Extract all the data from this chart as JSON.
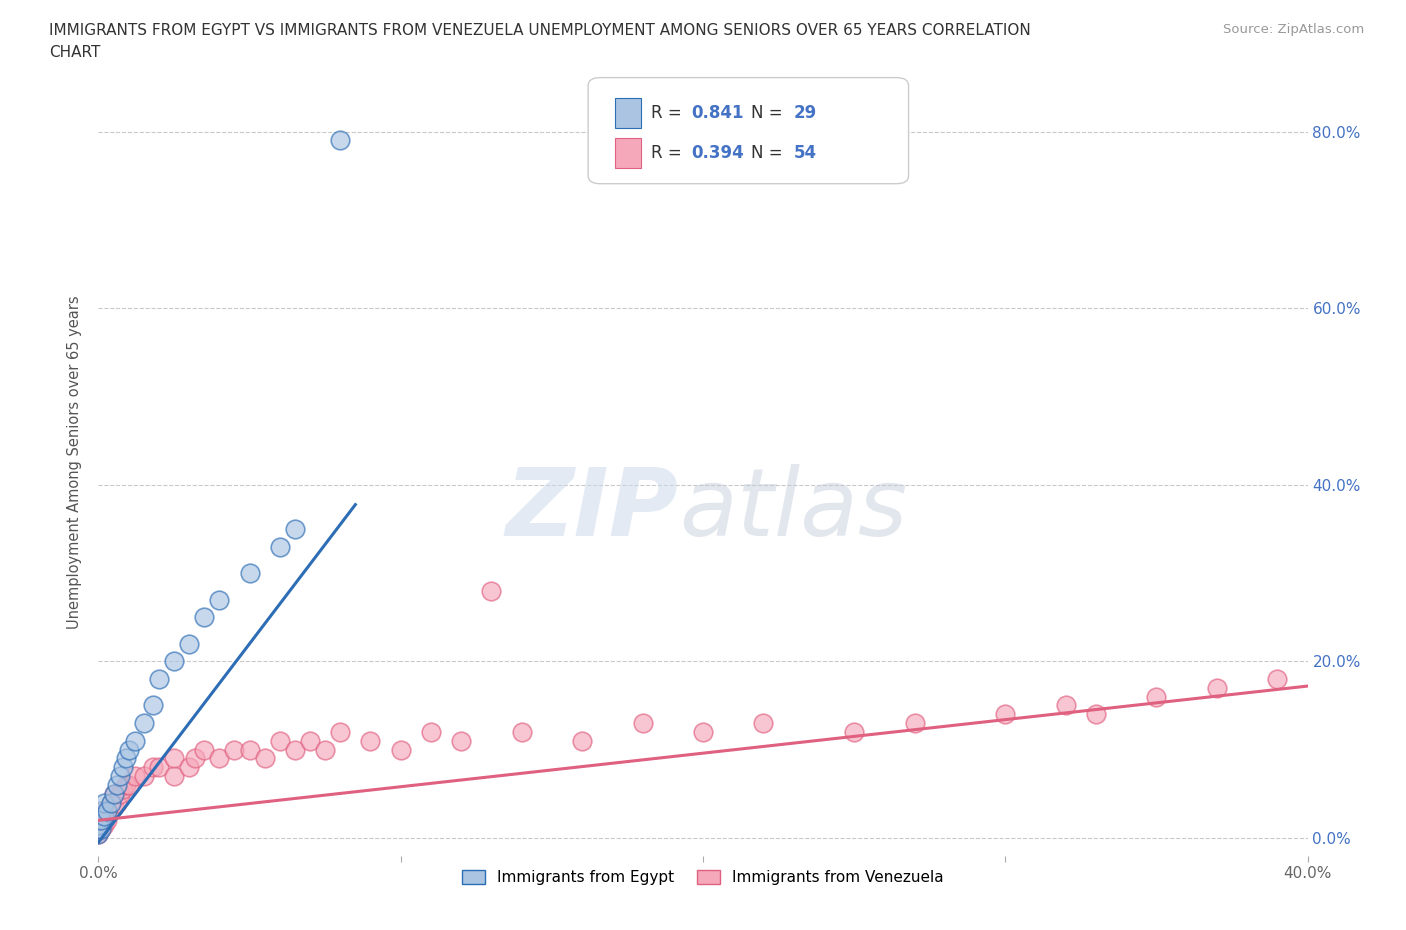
{
  "title_line1": "IMMIGRANTS FROM EGYPT VS IMMIGRANTS FROM VENEZUELA UNEMPLOYMENT AMONG SENIORS OVER 65 YEARS CORRELATION",
  "title_line2": "CHART",
  "source": "Source: ZipAtlas.com",
  "ylabel": "Unemployment Among Seniors over 65 years",
  "ytick_vals": [
    0.0,
    0.2,
    0.4,
    0.6,
    0.8
  ],
  "xlim": [
    0.0,
    0.4
  ],
  "ylim": [
    -0.02,
    0.87
  ],
  "r_egypt": 0.841,
  "n_egypt": 29,
  "r_venezuela": 0.394,
  "n_venezuela": 54,
  "legend_label_egypt": "Immigrants from Egypt",
  "legend_label_venezuela": "Immigrants from Venezuela",
  "egypt_color": "#aac4e2",
  "venezuela_color": "#f5a8ba",
  "egypt_line_color": "#2d6db5",
  "venezuela_line_color": "#e06080",
  "watermark_zip": "ZIP",
  "watermark_atlas": "atlas",
  "egypt_x": [
    0.0,
    0.0,
    0.0,
    0.0,
    0.001,
    0.001,
    0.001,
    0.002,
    0.002,
    0.003,
    0.004,
    0.005,
    0.006,
    0.007,
    0.008,
    0.009,
    0.01,
    0.012,
    0.015,
    0.018,
    0.02,
    0.025,
    0.03,
    0.035,
    0.04,
    0.05,
    0.06,
    0.065,
    0.08
  ],
  "egypt_y": [
    0.005,
    0.01,
    0.015,
    0.02,
    0.01,
    0.02,
    0.03,
    0.025,
    0.04,
    0.03,
    0.04,
    0.05,
    0.06,
    0.07,
    0.08,
    0.09,
    0.1,
    0.11,
    0.13,
    0.15,
    0.18,
    0.2,
    0.22,
    0.25,
    0.27,
    0.3,
    0.33,
    0.35,
    0.79
  ],
  "venezuela_x": [
    0.0,
    0.0,
    0.0,
    0.0,
    0.001,
    0.001,
    0.002,
    0.002,
    0.003,
    0.003,
    0.004,
    0.005,
    0.005,
    0.006,
    0.007,
    0.008,
    0.009,
    0.01,
    0.012,
    0.015,
    0.018,
    0.02,
    0.025,
    0.025,
    0.03,
    0.032,
    0.035,
    0.04,
    0.045,
    0.05,
    0.055,
    0.06,
    0.065,
    0.07,
    0.075,
    0.08,
    0.09,
    0.1,
    0.11,
    0.12,
    0.13,
    0.14,
    0.16,
    0.18,
    0.2,
    0.22,
    0.25,
    0.27,
    0.3,
    0.32,
    0.33,
    0.35,
    0.37,
    0.39
  ],
  "venezuela_y": [
    0.005,
    0.008,
    0.01,
    0.02,
    0.01,
    0.02,
    0.015,
    0.03,
    0.02,
    0.03,
    0.04,
    0.035,
    0.05,
    0.04,
    0.05,
    0.055,
    0.06,
    0.06,
    0.07,
    0.07,
    0.08,
    0.08,
    0.07,
    0.09,
    0.08,
    0.09,
    0.1,
    0.09,
    0.1,
    0.1,
    0.09,
    0.11,
    0.1,
    0.11,
    0.1,
    0.12,
    0.11,
    0.1,
    0.12,
    0.11,
    0.28,
    0.12,
    0.11,
    0.13,
    0.12,
    0.13,
    0.12,
    0.13,
    0.14,
    0.15,
    0.14,
    0.16,
    0.17,
    0.18
  ],
  "egypt_line_x": [
    0.0,
    0.085
  ],
  "egypt_line_y_intercept": -0.005,
  "egypt_line_slope": 4.5,
  "venezuela_line_x": [
    0.0,
    0.4
  ],
  "venezuela_line_y_intercept": 0.02,
  "venezuela_line_slope": 0.38
}
